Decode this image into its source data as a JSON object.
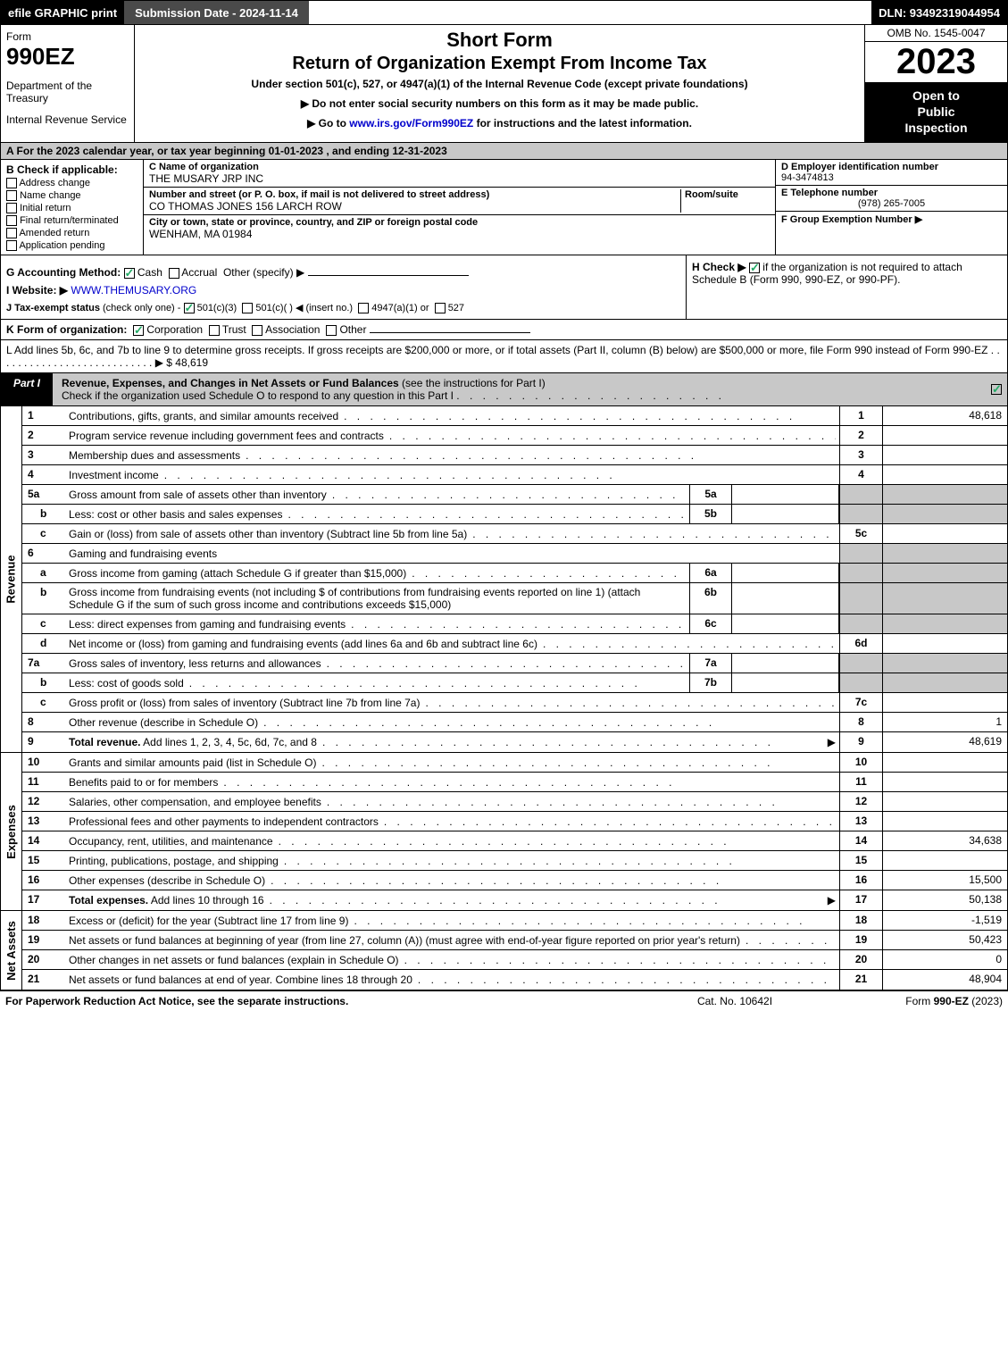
{
  "topbar": {
    "efile": "efile GRAPHIC print",
    "subdate": "Submission Date - 2024-11-14",
    "dln": "DLN: 93492319044954"
  },
  "header": {
    "form_word": "Form",
    "form_num": "990EZ",
    "dept": "Department of the Treasury",
    "irs": "Internal Revenue Service",
    "short": "Short Form",
    "ret_title": "Return of Organization Exempt From Income Tax",
    "under": "Under section 501(c), 527, or 4947(a)(1) of the Internal Revenue Code (except private foundations)",
    "note1_pre": "▶ Do not enter social security numbers on this form as it may be made public.",
    "note2_pre": "▶ Go to ",
    "note2_link": "www.irs.gov/Form990EZ",
    "note2_post": " for instructions and the latest information.",
    "omb": "OMB No. 1545-0047",
    "year": "2023",
    "open1": "Open to",
    "open2": "Public",
    "open3": "Inspection"
  },
  "row_a": "A  For the 2023 calendar year, or tax year beginning 01-01-2023 , and ending 12-31-2023",
  "section_b": {
    "hdr": "B  Check if applicable:",
    "cb1": "Address change",
    "cb2": "Name change",
    "cb3": "Initial return",
    "cb4": "Final return/terminated",
    "cb5": "Amended return",
    "cb6": "Application pending",
    "c_name_label": "C Name of organization",
    "c_name": "THE MUSARY JRP INC",
    "c_addr_label": "Number and street (or P. O. box, if mail is not delivered to street address)",
    "c_room_label": "Room/suite",
    "c_addr": "CO THOMAS JONES 156 LARCH ROW",
    "c_city_label": "City or town, state or province, country, and ZIP or foreign postal code",
    "c_city": "WENHAM, MA  01984",
    "d_label": "D Employer identification number",
    "d_val": "94-3474813",
    "e_label": "E Telephone number",
    "e_val": "(978) 265-7005",
    "f_label": "F Group Exemption Number  ▶"
  },
  "section_g": {
    "g_label": "G Accounting Method:",
    "g_cash": "Cash",
    "g_accrual": "Accrual",
    "g_other": "Other (specify) ▶",
    "i_label": "I Website: ▶",
    "i_val": "WWW.THEMUSARY.ORG",
    "j_label": "J Tax-exempt status",
    "j_sub": "(check only one) -",
    "j_501c3": "501(c)(3)",
    "j_501c": "501(c)(  ) ◀ (insert no.)",
    "j_4947": "4947(a)(1) or",
    "j_527": "527",
    "h_label": "H  Check ▶",
    "h_rest": "if the organization is not required to attach Schedule B (Form 990, 990-EZ, or 990-PF)."
  },
  "row_k": {
    "label": "K Form of organization:",
    "corp": "Corporation",
    "trust": "Trust",
    "assoc": "Association",
    "other": "Other"
  },
  "row_l": {
    "text": "L Add lines 5b, 6c, and 7b to line 9 to determine gross receipts. If gross receipts are $200,000 or more, or if total assets (Part II, column (B) below) are $500,000 or more, file Form 990 instead of Form 990-EZ",
    "dots": " .  .  .  .  .  .  .  .  .  .  .  .  .  .  .  .  .  .  .  .  .  .  .  .  .  .  . ",
    "arrow": "▶ $",
    "val": "48,619"
  },
  "part1": {
    "tag": "Part I",
    "title": "Revenue, Expenses, and Changes in Net Assets or Fund Balances",
    "sub": "(see the instructions for Part I)",
    "check_line": "Check if the organization used Schedule O to respond to any question in this Part I"
  },
  "revenue_lines": [
    {
      "n": "1",
      "d": "Contributions, gifts, grants, and similar amounts received",
      "box": "1",
      "val": "48,618"
    },
    {
      "n": "2",
      "d": "Program service revenue including government fees and contracts",
      "box": "2",
      "val": ""
    },
    {
      "n": "3",
      "d": "Membership dues and assessments",
      "box": "3",
      "val": ""
    },
    {
      "n": "4",
      "d": "Investment income",
      "box": "4",
      "val": ""
    },
    {
      "n": "5a",
      "d": "Gross amount from sale of assets other than inventory",
      "sub": "5a",
      "subval": "",
      "shaded": true,
      "indent": false
    },
    {
      "n": "b",
      "d": "Less: cost or other basis and sales expenses",
      "sub": "5b",
      "subval": "",
      "shaded": true,
      "indent": true
    },
    {
      "n": "c",
      "d": "Gain or (loss) from sale of assets other than inventory (Subtract line 5b from line 5a)",
      "box": "5c",
      "val": "",
      "indent": true
    },
    {
      "n": "6",
      "d": "Gaming and fundraising events",
      "noboxes": true
    },
    {
      "n": "a",
      "d": "Gross income from gaming (attach Schedule G if greater than $15,000)",
      "sub": "6a",
      "subval": "",
      "shaded": true,
      "indent": true
    },
    {
      "n": "b",
      "d_multi": "Gross income from fundraising events (not including $                      of contributions from fundraising events reported on line 1) (attach Schedule G if the sum of such gross income and contributions exceeds $15,000)",
      "sub": "6b",
      "subval": "",
      "shaded": true,
      "indent": true
    },
    {
      "n": "c",
      "d": "Less: direct expenses from gaming and fundraising events",
      "sub": "6c",
      "subval": "",
      "shaded": true,
      "indent": true
    },
    {
      "n": "d",
      "d": "Net income or (loss) from gaming and fundraising events (add lines 6a and 6b and subtract line 6c)",
      "box": "6d",
      "val": "",
      "indent": true
    },
    {
      "n": "7a",
      "d": "Gross sales of inventory, less returns and allowances",
      "sub": "7a",
      "subval": "",
      "shaded": true,
      "indent": false
    },
    {
      "n": "b",
      "d": "Less: cost of goods sold",
      "sub": "7b",
      "subval": "",
      "shaded": true,
      "indent": true
    },
    {
      "n": "c",
      "d": "Gross profit or (loss) from sales of inventory (Subtract line 7b from line 7a)",
      "box": "7c",
      "val": "",
      "indent": true
    },
    {
      "n": "8",
      "d": "Other revenue (describe in Schedule O)",
      "box": "8",
      "val": "1"
    },
    {
      "n": "9",
      "d": "Total revenue. Add lines 1, 2, 3, 4, 5c, 6d, 7c, and 8",
      "box": "9",
      "val": "48,619",
      "bold": true,
      "arrow": true
    }
  ],
  "expense_lines": [
    {
      "n": "10",
      "d": "Grants and similar amounts paid (list in Schedule O)",
      "box": "10",
      "val": ""
    },
    {
      "n": "11",
      "d": "Benefits paid to or for members",
      "box": "11",
      "val": ""
    },
    {
      "n": "12",
      "d": "Salaries, other compensation, and employee benefits",
      "box": "12",
      "val": ""
    },
    {
      "n": "13",
      "d": "Professional fees and other payments to independent contractors",
      "box": "13",
      "val": ""
    },
    {
      "n": "14",
      "d": "Occupancy, rent, utilities, and maintenance",
      "box": "14",
      "val": "34,638"
    },
    {
      "n": "15",
      "d": "Printing, publications, postage, and shipping",
      "box": "15",
      "val": ""
    },
    {
      "n": "16",
      "d": "Other expenses (describe in Schedule O)",
      "box": "16",
      "val": "15,500"
    },
    {
      "n": "17",
      "d": "Total expenses. Add lines 10 through 16",
      "box": "17",
      "val": "50,138",
      "bold": true,
      "arrow": true
    }
  ],
  "netasset_lines": [
    {
      "n": "18",
      "d": "Excess or (deficit) for the year (Subtract line 17 from line 9)",
      "box": "18",
      "val": "-1,519"
    },
    {
      "n": "19",
      "d_multi": "Net assets or fund balances at beginning of year (from line 27, column (A)) (must agree with end-of-year figure reported on prior year's return)",
      "box": "19",
      "val": "50,423"
    },
    {
      "n": "20",
      "d": "Other changes in net assets or fund balances (explain in Schedule O)",
      "box": "20",
      "val": "0"
    },
    {
      "n": "21",
      "d": "Net assets or fund balances at end of year. Combine lines 18 through 20",
      "box": "21",
      "val": "48,904"
    }
  ],
  "side_labels": {
    "revenue": "Revenue",
    "expenses": "Expenses",
    "netassets": "Net Assets"
  },
  "footer": {
    "f1": "For Paperwork Reduction Act Notice, see the separate instructions.",
    "f2": "Cat. No. 10642I",
    "f3_pre": "Form ",
    "f3_bold": "990-EZ",
    "f3_post": " (2023)"
  },
  "styling": {
    "bg": "#ffffff",
    "black": "#000000",
    "shaded": "#c8c8c8",
    "link": "#0000cc",
    "check_green": "#22aa66",
    "font_family": "Arial",
    "base_font_size": 12
  }
}
